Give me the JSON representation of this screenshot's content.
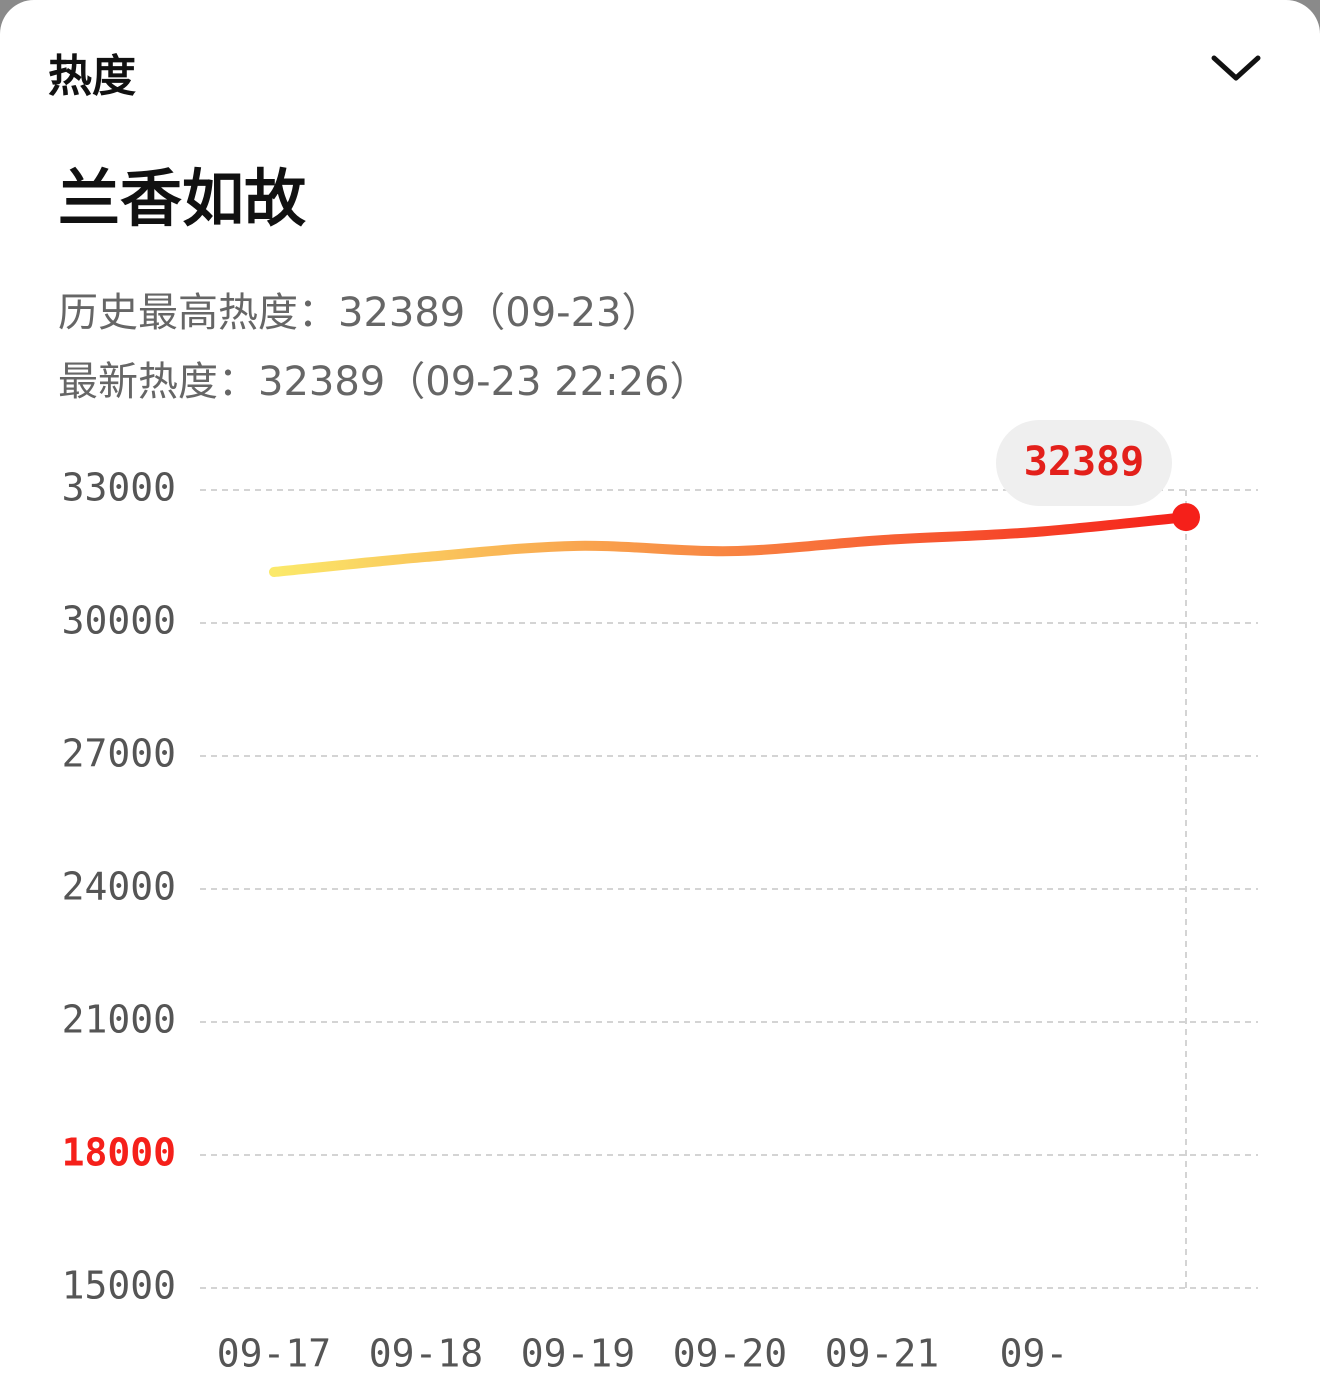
{
  "header": {
    "title": "热度"
  },
  "topic": "兰香如故",
  "stats": [
    "历史最高热度：32389（09-23）",
    "最新热度：32389（09-23 22:26）"
  ],
  "chart_data": {
    "type": "line",
    "categories": [
      "09-17",
      "09-18",
      "09-19",
      "09-20",
      "09-21",
      "09-",
      null
    ],
    "series": [
      {
        "values": [
          31150,
          31490,
          31740,
          31620,
          31870,
          32050,
          32389
        ],
        "color": "#f5201a",
        "color_start": "#fbe96a"
      }
    ],
    "ylim": [
      15000,
      33000
    ],
    "yticks": [
      15000,
      18000,
      21000,
      24000,
      27000,
      30000,
      33000
    ],
    "grid": true
  }
}
